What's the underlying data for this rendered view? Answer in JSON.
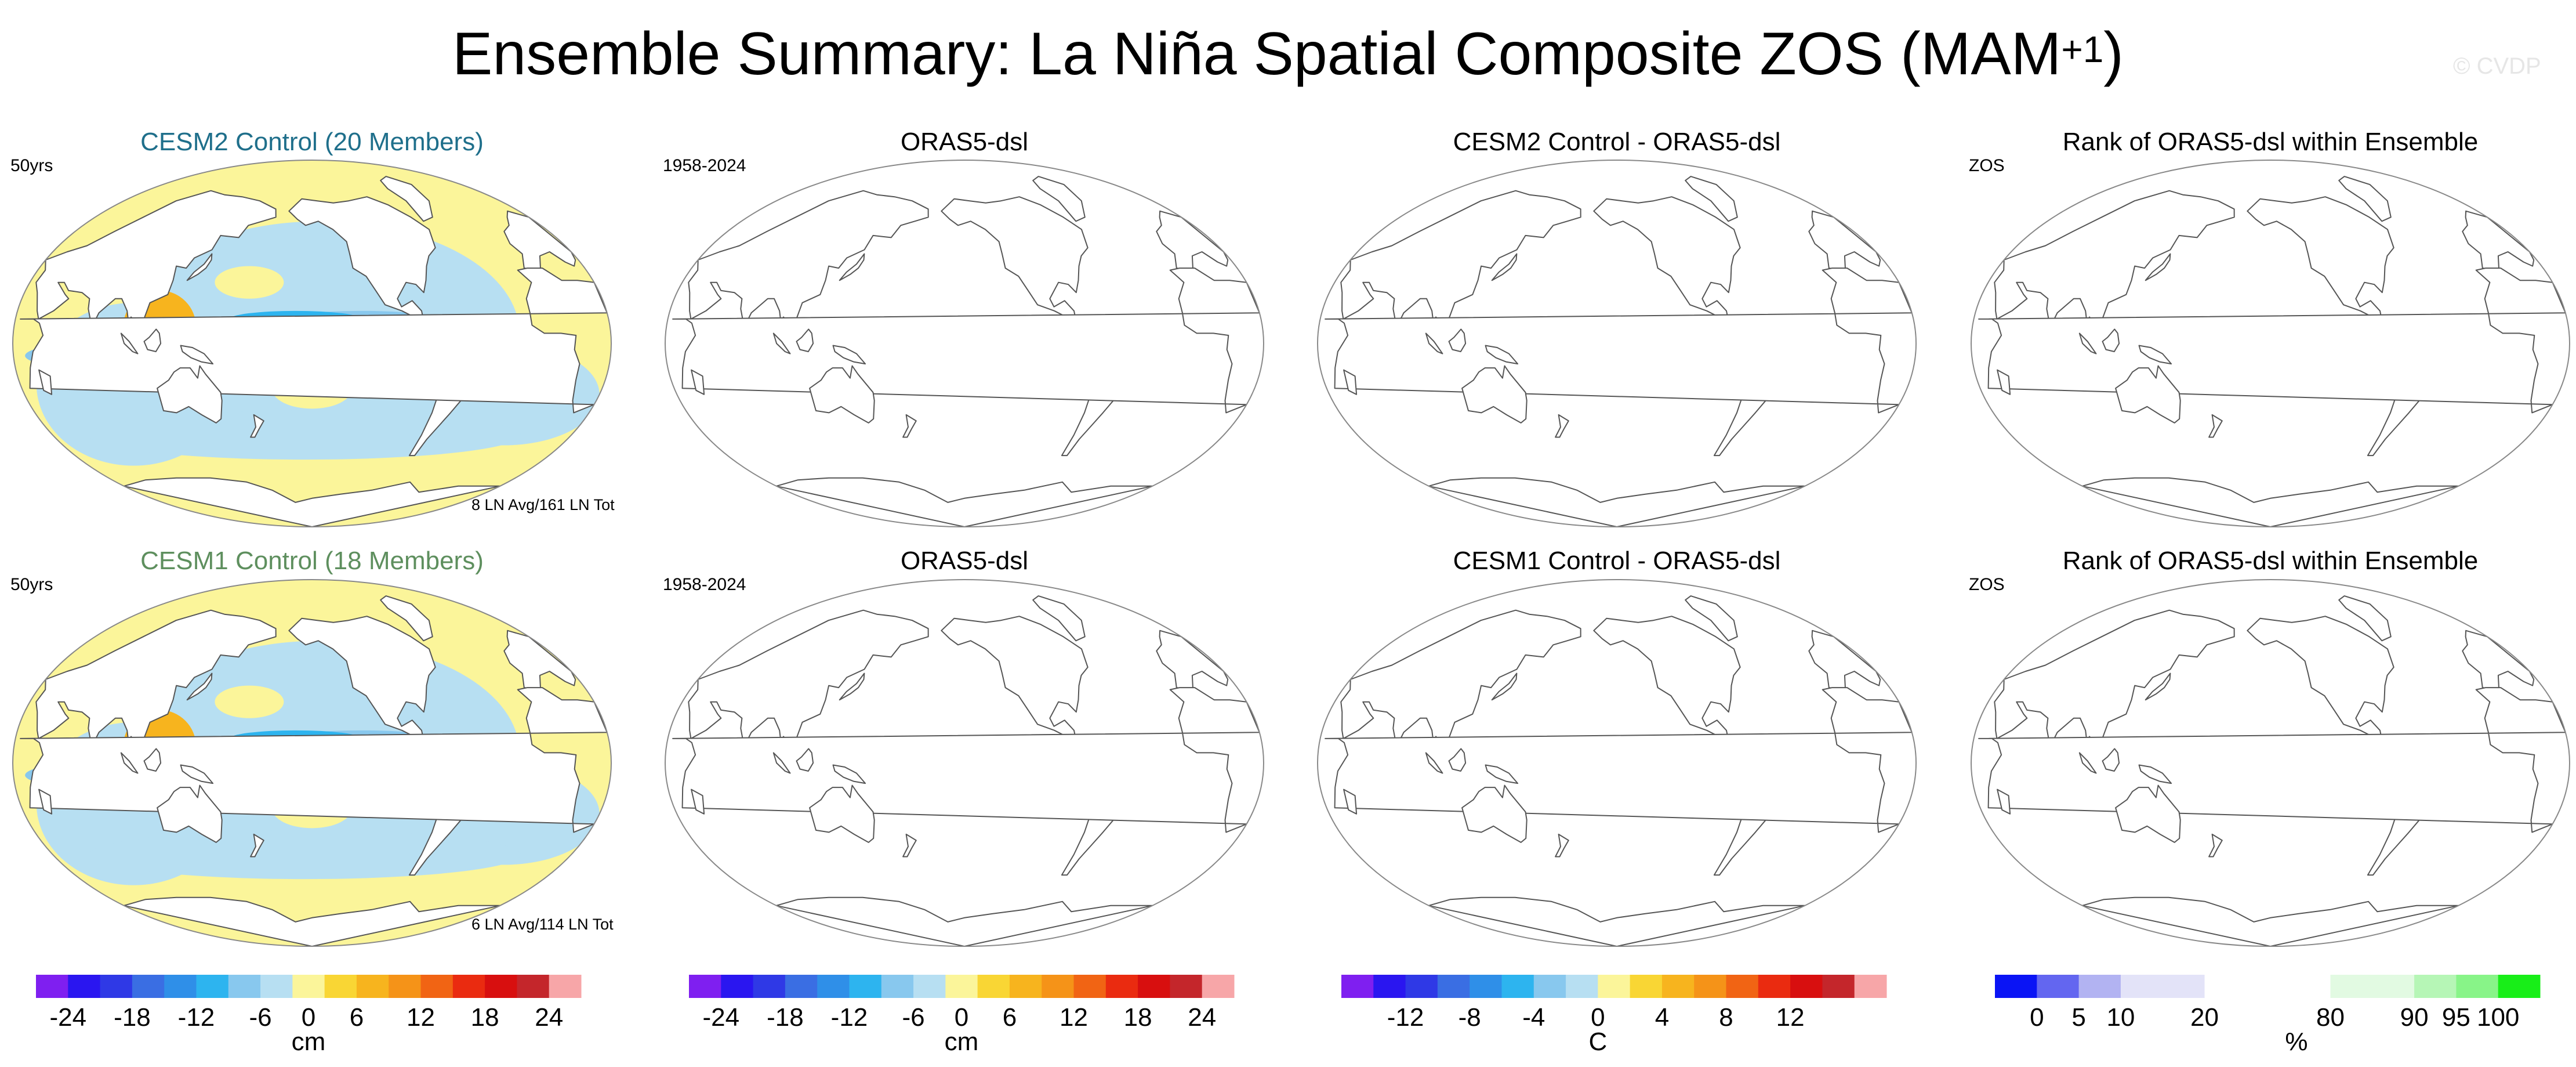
{
  "page": {
    "title": "Ensemble Summary: La Niña Spatial Composite ZOS (MAM",
    "title_sup": "+1",
    "title_close": ")",
    "watermark": "© CVDP"
  },
  "rows": [
    {
      "panels": [
        {
          "title": "CESM2 Control (20 Members)",
          "title_color": "#1f6f8b",
          "left_label": "50yrs",
          "footer": "8 LN Avg/161 LN Tot",
          "filled": true
        },
        {
          "title": "ORAS5-dsl",
          "title_color": "#000000",
          "left_label": "1958-2024",
          "footer": "",
          "filled": false
        },
        {
          "title": "CESM2 Control - ORAS5-dsl",
          "title_color": "#000000",
          "left_label": "",
          "footer": "",
          "filled": false
        },
        {
          "title": "Rank of ORAS5-dsl within Ensemble",
          "title_color": "#000000",
          "left_label": "ZOS",
          "footer": "",
          "filled": false
        }
      ]
    },
    {
      "panels": [
        {
          "title": "CESM1 Control (18 Members)",
          "title_color": "#5e8f5e",
          "left_label": "50yrs",
          "footer": "6 LN Avg/114 LN Tot",
          "filled": true
        },
        {
          "title": "ORAS5-dsl",
          "title_color": "#000000",
          "left_label": "1958-2024",
          "footer": "",
          "filled": false
        },
        {
          "title": "CESM1 Control - ORAS5-dsl",
          "title_color": "#000000",
          "left_label": "",
          "footer": "",
          "filled": false
        },
        {
          "title": "Rank of ORAS5-dsl within Ensemble",
          "title_color": "#000000",
          "left_label": "ZOS",
          "footer": "",
          "filled": false
        }
      ]
    }
  ],
  "colorbars": [
    {
      "unit": "cm",
      "colors": [
        "#7f1ff0",
        "#2a16f0",
        "#2f39e6",
        "#3a6ee3",
        "#2f8fe8",
        "#2db4ef",
        "#88c8ee",
        "#b7dff2",
        "#fbf59a",
        "#f9d634",
        "#f7b41e",
        "#f59318",
        "#f16414",
        "#ea2b10",
        "#d80f0f",
        "#c4262b",
        "#f7a6a8"
      ],
      "ticks": [
        "-24",
        "-18",
        "-12",
        "-6",
        "0",
        "6",
        "12",
        "18",
        "24"
      ]
    },
    {
      "unit": "cm",
      "colors": [
        "#7f1ff0",
        "#2a16f0",
        "#2f39e6",
        "#3a6ee3",
        "#2f8fe8",
        "#2db4ef",
        "#88c8ee",
        "#b7dff2",
        "#fbf59a",
        "#f9d634",
        "#f7b41e",
        "#f59318",
        "#f16414",
        "#ea2b10",
        "#d80f0f",
        "#c4262b",
        "#f7a6a8"
      ],
      "ticks": [
        "-24",
        "-18",
        "-12",
        "-6",
        "0",
        "6",
        "12",
        "18",
        "24"
      ]
    },
    {
      "unit": "C",
      "colors": [
        "#7f1ff0",
        "#2a16f0",
        "#2f39e6",
        "#3a6ee3",
        "#2f8fe8",
        "#2db4ef",
        "#88c8ee",
        "#b7dff2",
        "#fbf59a",
        "#f9d634",
        "#f7b41e",
        "#f59318",
        "#f16414",
        "#ea2b10",
        "#d80f0f",
        "#c4262b",
        "#f7a6a8"
      ],
      "ticks": [
        "-12",
        "-8",
        "-4",
        "0",
        "4",
        "8",
        "12"
      ]
    },
    {
      "unit": "%",
      "colors": [
        "#0a14f5",
        "#6366f0",
        "#b2b3f2",
        "#e3e3f8",
        "#e3e3f8",
        "#ffffff",
        "#ffffff",
        "#ffffff",
        "#e2fae2",
        "#e2fae2",
        "#b6f6b6",
        "#88f488",
        "#18ee18"
      ],
      "ticks": [
        "0",
        "5",
        "10",
        "20",
        "80",
        "90",
        "95",
        "100"
      ]
    }
  ],
  "colors": {
    "ocean_positive": "#fbf59a",
    "ocean_negative": "#b7dff2",
    "ocean_more_negative": "#88c8ee",
    "ocean_strong_negative": "#2db4ef",
    "warm_pool": "#f7b41e",
    "warm_pool_strong": "#f59318",
    "land": "#ffffff",
    "outline": "#555555"
  }
}
